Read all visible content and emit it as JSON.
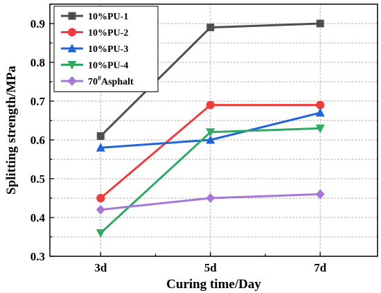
{
  "chart_data": {
    "type": "line",
    "title": "",
    "xlabel": "Curing time/Day",
    "ylabel": "Splitting strength/MPa",
    "categories": [
      "3d",
      "5d",
      "7d"
    ],
    "ylim": [
      0.3,
      0.95
    ],
    "yticks": [
      "0.3",
      "0.4",
      "0.5",
      "0.6",
      "0.7",
      "0.8",
      "0.9"
    ],
    "grid": true,
    "legend_position": "top-left",
    "series": [
      {
        "name": "10%PU-1",
        "values": [
          0.61,
          0.89,
          0.9
        ],
        "color": "#4d4d4d",
        "marker": "square"
      },
      {
        "name": "10%PU-2",
        "values": [
          0.45,
          0.69,
          0.69
        ],
        "color": "#ee3b3b",
        "marker": "circle"
      },
      {
        "name": "10%PU-3",
        "values": [
          0.58,
          0.6,
          0.67
        ],
        "color": "#1f64d8",
        "marker": "triangle-up"
      },
      {
        "name": "10%PU-4",
        "values": [
          0.36,
          0.62,
          0.63
        ],
        "color": "#2fa862",
        "marker": "triangle-down"
      },
      {
        "name": "70#Asphalt",
        "values": [
          0.42,
          0.45,
          0.46
        ],
        "color": "#a678d6",
        "marker": "diamond"
      }
    ]
  }
}
